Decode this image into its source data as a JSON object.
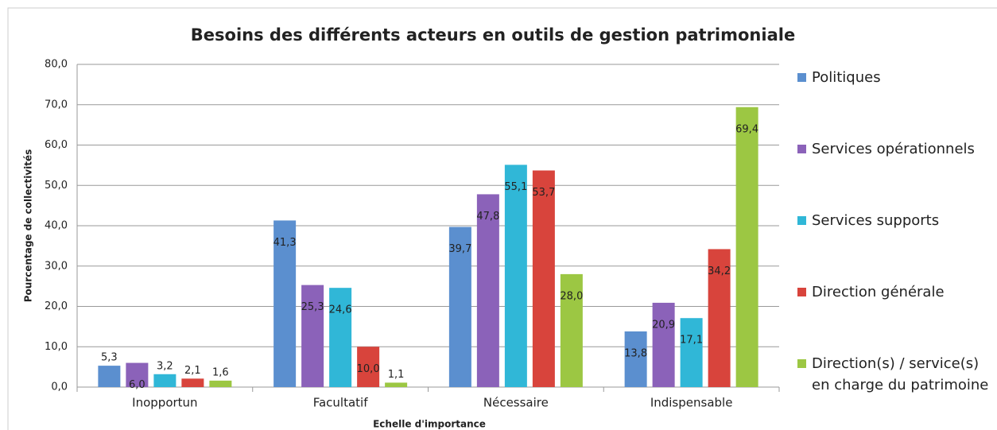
{
  "chart_data": {
    "type": "bar",
    "title": "Besoins des différents acteurs en outils de gestion patrimoniale",
    "x_label": "Echelle d'importance",
    "y_label": "Pourcentage de collectivités",
    "categories": [
      "Inopportun",
      "Facultatif",
      "Nécessaire",
      "Indispensable"
    ],
    "series": [
      {
        "name": "Politiques",
        "color": "#5b8fcf",
        "values": [
          5.3,
          41.3,
          39.7,
          13.8
        ],
        "value_labels": [
          "5,3",
          "41,3",
          "39,7",
          "13,8"
        ]
      },
      {
        "name": "Services opérationnels",
        "color": "#8b62b9",
        "values": [
          6.0,
          25.3,
          47.8,
          20.9
        ],
        "value_labels": [
          "6,0",
          "25,3",
          "47,8",
          "20,9"
        ]
      },
      {
        "name": "Services supports",
        "color": "#30b7d7",
        "values": [
          3.2,
          24.6,
          55.1,
          17.1
        ],
        "value_labels": [
          "3,2",
          "24,6",
          "55,1",
          "17,1"
        ]
      },
      {
        "name": "Direction générale",
        "color": "#d8443c",
        "values": [
          2.1,
          10.0,
          53.7,
          34.2
        ],
        "value_labels": [
          "2,1",
          "10,0",
          "53,7",
          "34,2"
        ]
      },
      {
        "name": "Direction(s) / service(s) en charge du patrimoine",
        "color": "#9cc743",
        "values": [
          1.6,
          1.1,
          28.0,
          69.4
        ],
        "value_labels": [
          "1,6",
          "1,1",
          "28,0",
          "69,4"
        ]
      }
    ],
    "ylim": [
      0,
      80
    ],
    "yticks": [
      {
        "value": 0,
        "label": "0,0"
      },
      {
        "value": 10,
        "label": "10,0"
      },
      {
        "value": 20,
        "label": "20,0"
      },
      {
        "value": 30,
        "label": "30,0"
      },
      {
        "value": 40,
        "label": "40,0"
      },
      {
        "value": 50,
        "label": "50,0"
      },
      {
        "value": 60,
        "label": "60,0"
      },
      {
        "value": 70,
        "label": "70,0"
      },
      {
        "value": 80,
        "label": "80,0"
      }
    ],
    "grid": true,
    "legend": "right"
  }
}
